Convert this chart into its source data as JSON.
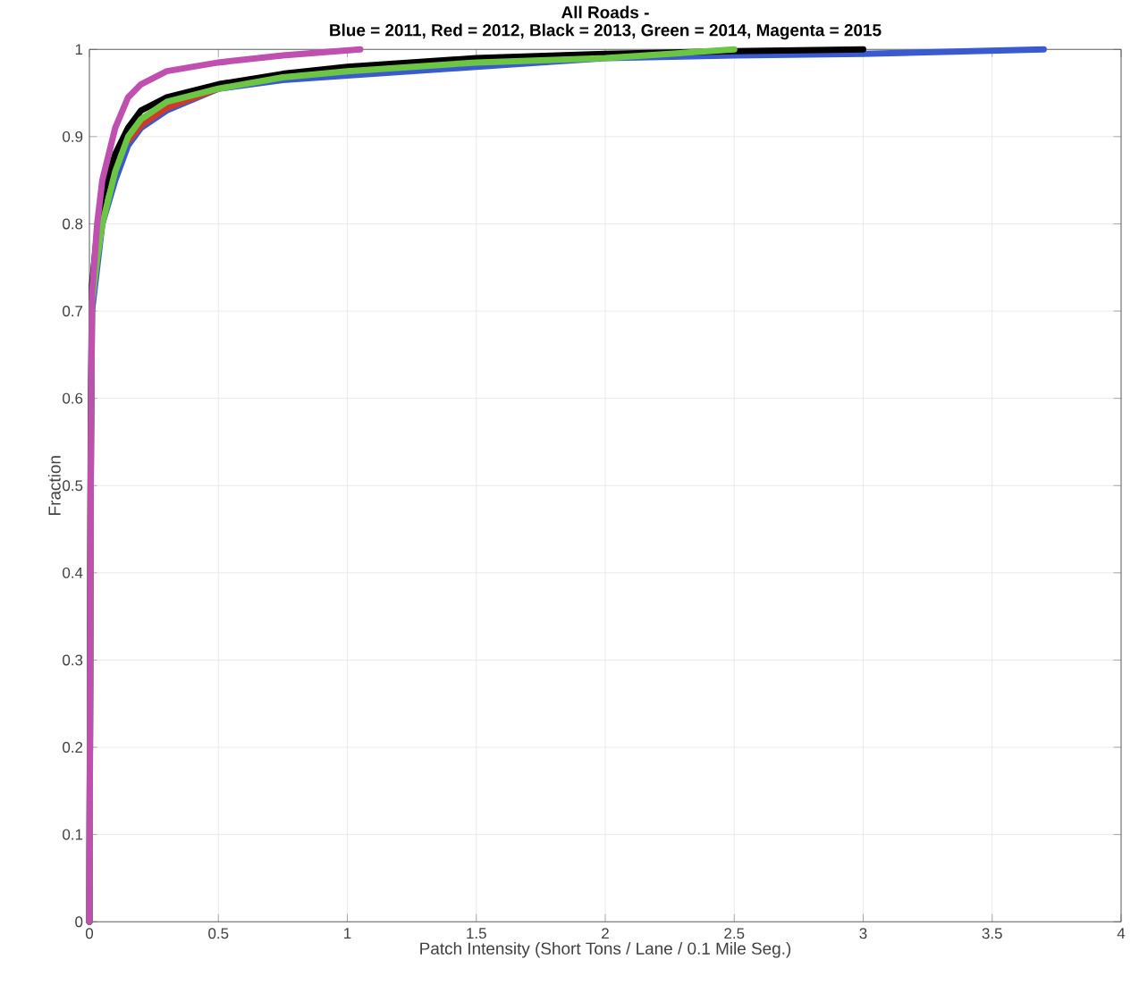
{
  "chart_data": {
    "type": "line",
    "title": "All Roads -",
    "subtitle": "Blue = 2011, Red = 2012, Black = 2013, Green = 2014, Magenta = 2015",
    "xlabel": "Patch Intensity (Short Tons / Lane / 0.1 Mile Seg.)",
    "ylabel": "Fraction",
    "xlim": [
      0,
      4
    ],
    "ylim": [
      0,
      1
    ],
    "xticks": [
      0,
      0.5,
      1,
      1.5,
      2,
      2.5,
      3,
      3.5,
      4
    ],
    "yticks": [
      0,
      0.1,
      0.2,
      0.3,
      0.4,
      0.5,
      0.6,
      0.7,
      0.8,
      0.9,
      1
    ],
    "grid": true,
    "marker": "none",
    "line_style": "solid",
    "series": [
      {
        "color": "#3a5bd0",
        "x": [
          0,
          0.005,
          0.01,
          0.03,
          0.05,
          0.1,
          0.15,
          0.2,
          0.3,
          0.5,
          0.75,
          1,
          1.5,
          2,
          2.5,
          3,
          3.7
        ],
        "values": [
          0,
          0.5,
          0.7,
          0.75,
          0.8,
          0.85,
          0.89,
          0.91,
          0.93,
          0.955,
          0.965,
          0.97,
          0.98,
          0.99,
          0.993,
          0.995,
          1
        ]
      },
      {
        "color": "#d03a2a",
        "x": [
          0.15,
          0.2,
          0.3,
          0.5
        ],
        "values": [
          0.895,
          0.913,
          0.933,
          0.955
        ]
      },
      {
        "color": "#000000",
        "x": [
          0,
          0.005,
          0.01,
          0.03,
          0.05,
          0.1,
          0.15,
          0.2,
          0.3,
          0.5,
          0.75,
          1,
          1.5,
          2,
          2.5,
          3
        ],
        "values": [
          0,
          0.55,
          0.73,
          0.79,
          0.83,
          0.88,
          0.91,
          0.93,
          0.945,
          0.96,
          0.972,
          0.98,
          0.99,
          0.995,
          0.998,
          1
        ]
      },
      {
        "color": "#6cc644",
        "x": [
          0,
          0.005,
          0.01,
          0.03,
          0.05,
          0.1,
          0.15,
          0.2,
          0.3,
          0.5,
          0.75,
          1,
          1.5,
          2,
          2.5
        ],
        "values": [
          0,
          0.5,
          0.71,
          0.76,
          0.8,
          0.86,
          0.9,
          0.92,
          0.94,
          0.955,
          0.968,
          0.975,
          0.985,
          0.99,
          1
        ]
      },
      {
        "color": "#c050b0",
        "x": [
          0,
          0.005,
          0.01,
          0.03,
          0.05,
          0.1,
          0.15,
          0.2,
          0.3,
          0.5,
          0.75,
          1.05
        ],
        "values": [
          0,
          0.5,
          0.72,
          0.8,
          0.85,
          0.91,
          0.945,
          0.96,
          0.975,
          0.985,
          0.993,
          1
        ]
      }
    ]
  }
}
